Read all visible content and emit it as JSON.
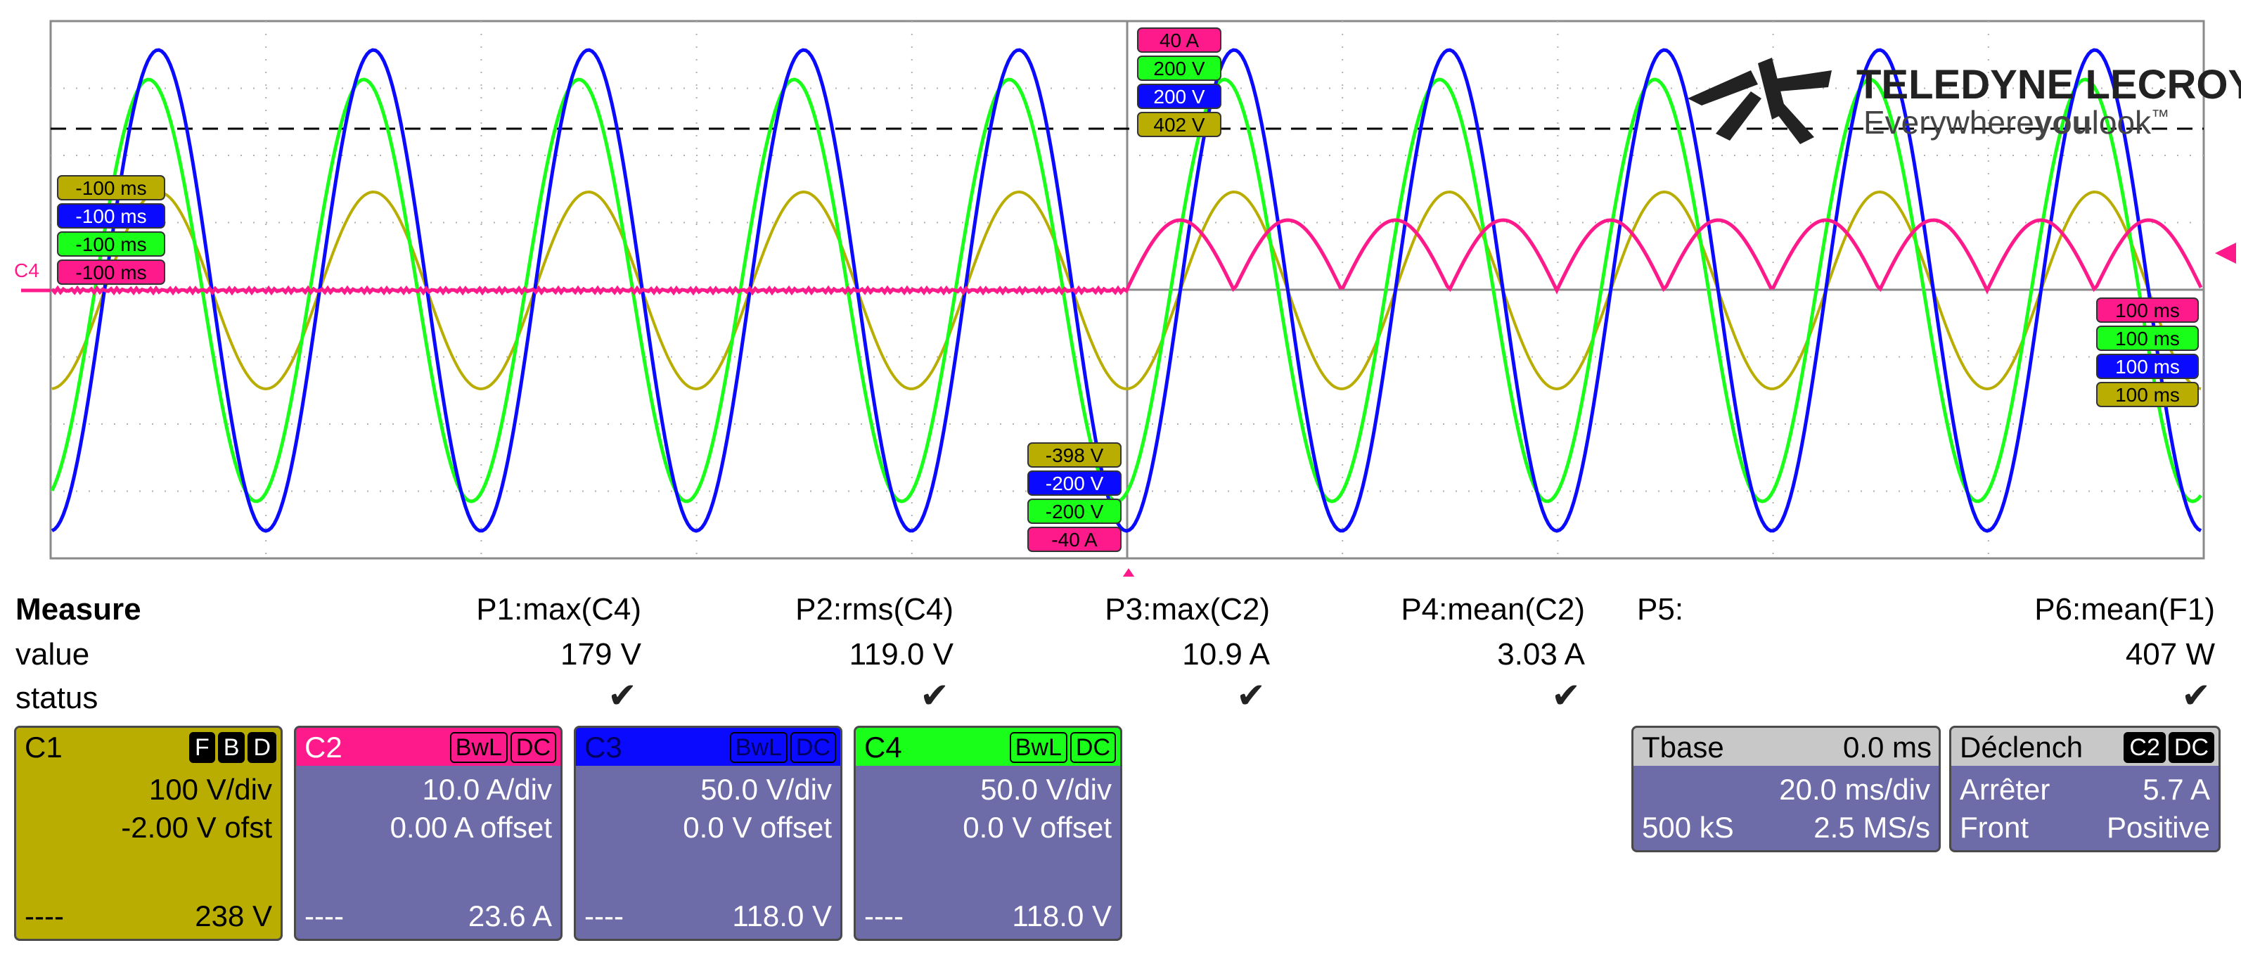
{
  "brand": {
    "name": "TELEDYNE LECROY",
    "tagline_prefix": "Everywhere",
    "tagline_bold": "you",
    "tagline_suffix": "look",
    "tm": "™"
  },
  "markers": {
    "ch_label_left": "C4",
    "left_tags": [
      "-100 ms",
      "-100 ms",
      "-100 ms",
      "-100 ms"
    ],
    "top_tags": [
      "40 A",
      "200 V",
      "200 V",
      "402 V"
    ],
    "bottom_tags": [
      "-398 V",
      "-200 V",
      "-200 V",
      "-40 A"
    ],
    "right_tags": [
      "100 ms",
      "100 ms",
      "100 ms",
      "100 ms"
    ]
  },
  "measure": {
    "row_labels": [
      "Measure",
      "value",
      "status"
    ],
    "columns": [
      {
        "param": "P1:max(C4)",
        "value": "179 V",
        "status": "✔"
      },
      {
        "param": "P2:rms(C4)",
        "value": "119.0 V",
        "status": "✔"
      },
      {
        "param": "P3:max(C2)",
        "value": "10.9 A",
        "status": "✔"
      },
      {
        "param": "P4:mean(C2)",
        "value": "3.03 A",
        "status": "✔"
      },
      {
        "param": "P5:",
        "value": "",
        "status": ""
      },
      {
        "param": "P6:mean(F1)",
        "value": "407 W",
        "status": "✔"
      }
    ]
  },
  "channels": [
    {
      "name": "C1",
      "badges": [
        "F",
        "B",
        "D"
      ],
      "vdiv": "100 V/div",
      "offset": "-2.00 V ofst",
      "dashes": "----",
      "reading": "238 V",
      "color": "#b8ad00"
    },
    {
      "name": "C2",
      "badges": [
        "BwL",
        "DC"
      ],
      "vdiv": "10.0 A/div",
      "offset": "0.00 A offset",
      "dashes": "----",
      "reading": "23.6 A",
      "color": "#ff1a8c"
    },
    {
      "name": "C3",
      "badges": [
        "BwL",
        "DC"
      ],
      "vdiv": "50.0 V/div",
      "offset": "0.0 V offset",
      "dashes": "----",
      "reading": "118.0 V",
      "color": "#0a0aff"
    },
    {
      "name": "C4",
      "badges": [
        "BwL",
        "DC"
      ],
      "vdiv": "50.0 V/div",
      "offset": "0.0 V offset",
      "dashes": "----",
      "reading": "118.0 V",
      "color": "#1aff1a"
    }
  ],
  "timebase": {
    "label": "Tbase",
    "delay": "0.0 ms",
    "tdiv": "20.0 ms/div",
    "samples": "500 kS",
    "rate": "2.5 MS/s"
  },
  "trigger": {
    "label": "Déclench",
    "badges": [
      "C2",
      "DC"
    ],
    "mode": "Arrêter",
    "level": "5.7 A",
    "slope_label": "Front",
    "slope": "Positive"
  },
  "colors": {
    "c1": "#b8ad00",
    "c2": "#ff1a8c",
    "c3": "#0a0aff",
    "c4": "#1aff1a",
    "panel": "#6e6ca8",
    "grid": "#9a9a9a"
  }
}
